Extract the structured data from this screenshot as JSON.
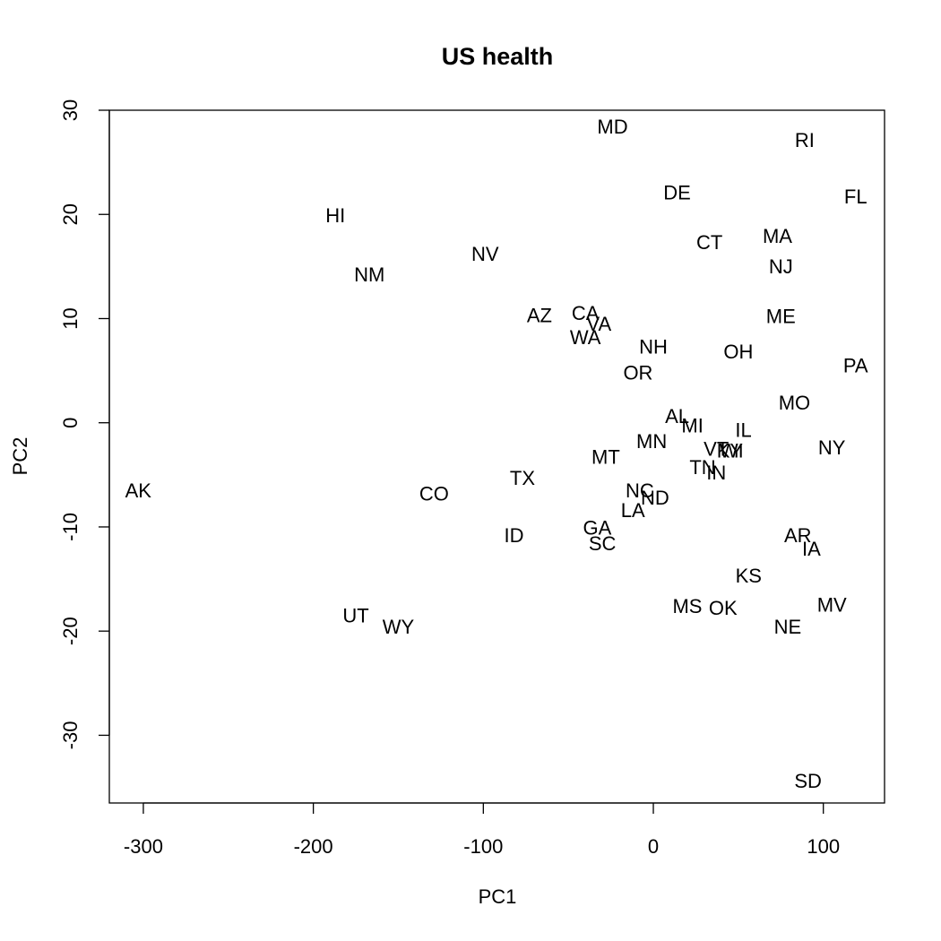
{
  "chart_data": {
    "type": "scatter",
    "title": "US health",
    "xlabel": "PC1",
    "ylabel": "PC2",
    "xlim": [
      -320,
      136
    ],
    "ylim": [
      -36.5,
      30
    ],
    "xticks": [
      -300,
      -200,
      -100,
      0,
      100
    ],
    "yticks": [
      -30,
      -20,
      -10,
      0,
      10,
      20,
      30
    ],
    "grid": false,
    "legend": "none",
    "points": [
      {
        "label": "AK",
        "x": -303,
        "y": -6.5
      },
      {
        "label": "HI",
        "x": -187,
        "y": 19.9
      },
      {
        "label": "NM",
        "x": -167,
        "y": 14.2
      },
      {
        "label": "UT",
        "x": -175,
        "y": -18.5
      },
      {
        "label": "WY",
        "x": -150,
        "y": -19.6
      },
      {
        "label": "CO",
        "x": -129,
        "y": -6.8
      },
      {
        "label": "NV",
        "x": -99,
        "y": 16.2
      },
      {
        "label": "TX",
        "x": -77,
        "y": -5.3
      },
      {
        "label": "ID",
        "x": -82,
        "y": -10.8
      },
      {
        "label": "AZ",
        "x": -67,
        "y": 10.3
      },
      {
        "label": "CA",
        "x": -40,
        "y": 10.5
      },
      {
        "label": "VA",
        "x": -32,
        "y": 9.5
      },
      {
        "label": "WA",
        "x": -40,
        "y": 8.2
      },
      {
        "label": "MD",
        "x": -24,
        "y": 28.4
      },
      {
        "label": "MT",
        "x": -28,
        "y": -3.3
      },
      {
        "label": "GA",
        "x": -33,
        "y": -10.1
      },
      {
        "label": "SC",
        "x": -30,
        "y": -11.6
      },
      {
        "label": "NH",
        "x": 0,
        "y": 7.3
      },
      {
        "label": "OR",
        "x": -9,
        "y": 4.8
      },
      {
        "label": "MN",
        "x": -1,
        "y": -1.8
      },
      {
        "label": "NC",
        "x": -8,
        "y": -6.5
      },
      {
        "label": "LA",
        "x": -12,
        "y": -8.4
      },
      {
        "label": "ND",
        "x": 1,
        "y": -7.2
      },
      {
        "label": "DE",
        "x": 14,
        "y": 22.1
      },
      {
        "label": "CT",
        "x": 33,
        "y": 17.3
      },
      {
        "label": "AL",
        "x": 14,
        "y": 0.6
      },
      {
        "label": "MI",
        "x": 23,
        "y": -0.3
      },
      {
        "label": "VT",
        "x": 37,
        "y": -2.5
      },
      {
        "label": "KY",
        "x": 45,
        "y": -2.7
      },
      {
        "label": "WI",
        "x": 46,
        "y": -2.7
      },
      {
        "label": "TN",
        "x": 29,
        "y": -4.3
      },
      {
        "label": "IN",
        "x": 37,
        "y": -4.8
      },
      {
        "label": "IL",
        "x": 53,
        "y": -0.7
      },
      {
        "label": "OH",
        "x": 50,
        "y": 6.8
      },
      {
        "label": "MS",
        "x": 20,
        "y": -17.6
      },
      {
        "label": "OK",
        "x": 41,
        "y": -17.8
      },
      {
        "label": "KS",
        "x": 56,
        "y": -14.7
      },
      {
        "label": "MA",
        "x": 73,
        "y": 17.9
      },
      {
        "label": "NJ",
        "x": 75,
        "y": 15.0
      },
      {
        "label": "ME",
        "x": 75,
        "y": 10.2
      },
      {
        "label": "RI",
        "x": 89,
        "y": 27.1
      },
      {
        "label": "FL",
        "x": 119,
        "y": 21.7
      },
      {
        "label": "PA",
        "x": 119,
        "y": 5.5
      },
      {
        "label": "MO",
        "x": 83,
        "y": 1.9
      },
      {
        "label": "NY",
        "x": 105,
        "y": -2.4
      },
      {
        "label": "AR",
        "x": 85,
        "y": -10.8
      },
      {
        "label": "IA",
        "x": 93,
        "y": -12.1
      },
      {
        "label": "MV",
        "x": 105,
        "y": -17.5
      },
      {
        "label": "NE",
        "x": 79,
        "y": -19.6
      },
      {
        "label": "SD",
        "x": 91,
        "y": -34.4
      }
    ]
  }
}
